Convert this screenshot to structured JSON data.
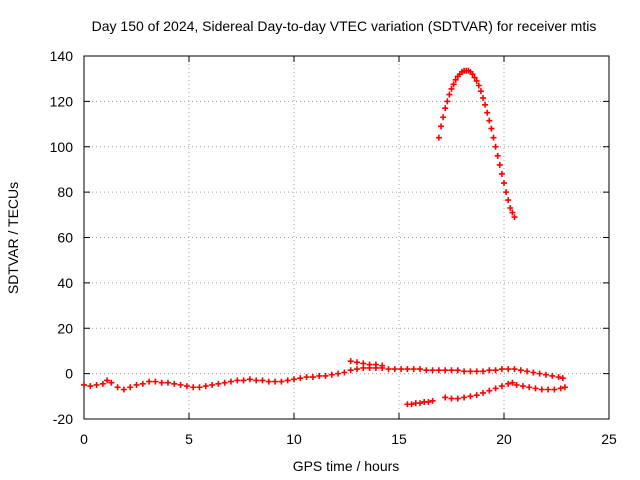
{
  "chart_data": {
    "type": "scatter",
    "title": "Day 150 of 2024, Sidereal Day-to-day VTEC variation (SDTVAR) for receiver mtis",
    "xlabel": "GPS time / hours",
    "ylabel": "SDTVAR / TECUs",
    "xlim": [
      0,
      25
    ],
    "ylim": [
      -20,
      140
    ],
    "xticks": [
      "0",
      "5",
      "10",
      "15",
      "20",
      "25"
    ],
    "yticks": [
      "-20",
      "0",
      "20",
      "40",
      "60",
      "80",
      "100",
      "120",
      "140"
    ],
    "grid": true,
    "marker": "+",
    "color": "#ff0000",
    "series": [
      {
        "name": "main",
        "x": [
          0.0,
          0.3,
          0.6,
          0.9,
          1.1,
          1.3,
          1.6,
          1.9,
          2.2,
          2.5,
          2.8,
          3.1,
          3.4,
          3.7,
          4.0,
          4.3,
          4.6,
          4.9,
          5.2,
          5.5,
          5.8,
          6.1,
          6.4,
          6.7,
          7.0,
          7.3,
          7.6,
          7.9,
          8.2,
          8.5,
          8.8,
          9.1,
          9.4,
          9.7,
          10.0,
          10.3,
          10.6,
          10.9,
          11.2,
          11.5,
          11.8,
          12.1,
          12.4,
          12.7,
          13.0,
          13.3,
          13.6,
          13.9,
          14.2,
          14.5,
          14.8,
          15.1,
          15.4,
          15.7,
          16.0,
          16.3,
          16.6,
          16.9,
          17.2,
          17.5,
          17.8,
          18.1,
          18.4,
          18.7,
          19.0,
          19.3,
          19.6,
          19.9,
          20.2,
          20.5,
          20.8,
          21.1,
          21.4,
          21.7,
          22.0,
          22.3,
          22.6,
          22.8
        ],
        "y": [
          -5,
          -5.5,
          -5,
          -4.5,
          -3,
          -4,
          -6,
          -7,
          -6,
          -5,
          -4.5,
          -3.5,
          -3.5,
          -4,
          -4,
          -4.5,
          -5,
          -5.5,
          -6,
          -6,
          -5.5,
          -5,
          -4.5,
          -4,
          -3.5,
          -3,
          -3,
          -2.5,
          -3,
          -3,
          -3.5,
          -3.5,
          -3.5,
          -3,
          -2.5,
          -2,
          -1.5,
          -1.5,
          -1,
          -1,
          -0.5,
          0,
          0.5,
          1.5,
          2,
          2.5,
          2.5,
          2.5,
          2.5,
          2,
          2,
          2,
          2,
          2,
          2,
          1.5,
          1.5,
          1.5,
          1.5,
          1.5,
          1.5,
          1,
          1,
          1,
          1,
          1.5,
          1.5,
          2,
          2,
          2,
          1.5,
          1,
          0.5,
          0,
          -0.5,
          -1,
          -1.5,
          -2
        ]
      },
      {
        "name": "upper-arc",
        "x": [
          16.9,
          17.0,
          17.1,
          17.2,
          17.3,
          17.4,
          17.5,
          17.6,
          17.7,
          17.8,
          17.9,
          18.0,
          18.1,
          18.2,
          18.3,
          18.4,
          18.5,
          18.6,
          18.7,
          18.8,
          18.9,
          19.0,
          19.1,
          19.2,
          19.3,
          19.4,
          19.5,
          19.6,
          19.7,
          19.8,
          19.9,
          20.0,
          20.1,
          20.2,
          20.3,
          20.4,
          20.5
        ],
        "y": [
          104,
          109,
          113,
          117,
          120,
          123,
          125.5,
          127.5,
          129.5,
          131,
          132,
          133,
          133.5,
          133.5,
          133.5,
          133,
          132,
          130.5,
          129,
          127,
          124.5,
          121.5,
          118.5,
          115,
          111.5,
          108,
          104,
          100,
          96,
          92,
          88,
          84,
          80,
          76.5,
          73,
          71,
          69
        ]
      },
      {
        "name": "lower-arc-1",
        "x": [
          15.4,
          15.6,
          15.8,
          16.0,
          16.2,
          16.4,
          16.6
        ],
        "y": [
          -13.5,
          -13.5,
          -13,
          -13,
          -12.5,
          -12.5,
          -12
        ]
      },
      {
        "name": "lower-arc-2",
        "x": [
          17.2,
          17.5,
          17.8,
          18.1,
          18.4,
          18.7,
          19.0,
          19.3,
          19.6,
          19.9,
          20.2,
          20.4
        ],
        "y": [
          -10.5,
          -11,
          -11,
          -10.5,
          -10,
          -9.5,
          -8.5,
          -7.5,
          -6.5,
          -5.5,
          -4.5,
          -4
        ]
      },
      {
        "name": "lower-arc-3",
        "x": [
          20.6,
          20.9,
          21.2,
          21.5,
          21.8,
          22.1,
          22.4,
          22.7,
          22.9
        ],
        "y": [
          -5,
          -5.5,
          -6,
          -6.5,
          -7,
          -7,
          -7,
          -6.5,
          -6
        ]
      },
      {
        "name": "mid-segment",
        "x": [
          12.7,
          13.0,
          13.3,
          13.6,
          13.9,
          14.2
        ],
        "y": [
          5.5,
          5,
          4.5,
          4,
          4,
          3.5
        ]
      }
    ]
  }
}
